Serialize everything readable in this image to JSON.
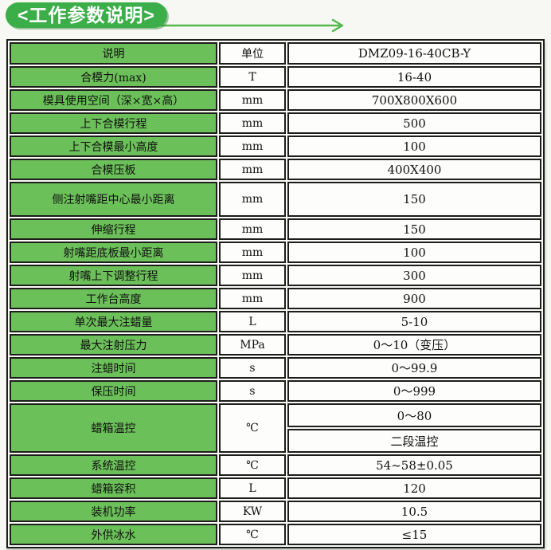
{
  "page": {
    "background": "#f7f8f4"
  },
  "header": {
    "badge_label": "<工作参数说明>",
    "badge_color": "#3cae49",
    "arrow_color": "#54b94e",
    "arrow_icon": "right-arrow"
  },
  "table": {
    "green_cell_color": "#6cc05a",
    "border_color": "#1d1d1b",
    "header": {
      "desc": "说明",
      "unit": "单位",
      "model": "DMZ09-16-40CB-Y"
    },
    "rows": [
      {
        "label": "合模力(max)",
        "unit": "T",
        "value": "16-40"
      },
      {
        "label": "模具使用空间（深×宽×高）",
        "unit": "mm",
        "value": "700X800X600"
      },
      {
        "label": "上下合模行程",
        "unit": "mm",
        "value": "500"
      },
      {
        "label": "上下合模最小高度",
        "unit": "mm",
        "value": "100"
      },
      {
        "label": "合模压板",
        "unit": "mm",
        "value": "400X400"
      },
      {
        "label": "侧注射嘴距中心最小距离",
        "unit": "mm",
        "value": "150",
        "tall": true
      },
      {
        "label": "伸缩行程",
        "unit": "mm",
        "value": "150"
      },
      {
        "label": "射嘴距底板最小距离",
        "unit": "mm",
        "value": "100"
      },
      {
        "label": "射嘴上下调整行程",
        "unit": "mm",
        "value": "300"
      },
      {
        "label": "工作台高度",
        "unit": "mm",
        "value": "900"
      },
      {
        "label": "单次最大注蜡量",
        "unit": "L",
        "value": "5-10"
      },
      {
        "label": "最大注射压力",
        "unit": "MPa",
        "value": "0～10（变压）"
      },
      {
        "label": "注蜡时间",
        "unit": "s",
        "value": "0～99.9"
      },
      {
        "label": "保压时间",
        "unit": "s",
        "value": "0～999"
      },
      {
        "label": "蜡箱温控",
        "unit": "℃",
        "values": [
          "0～80",
          "二段温控"
        ]
      },
      {
        "label": "系统温控",
        "unit": "℃",
        "value": "54~58±0.05"
      },
      {
        "label": "蜡箱容积",
        "unit": "L",
        "value": "120"
      },
      {
        "label": "装机功率",
        "unit": "KW",
        "value": "10.5"
      },
      {
        "label": "外供冰水",
        "unit": "℃",
        "value": "≤15"
      }
    ]
  }
}
